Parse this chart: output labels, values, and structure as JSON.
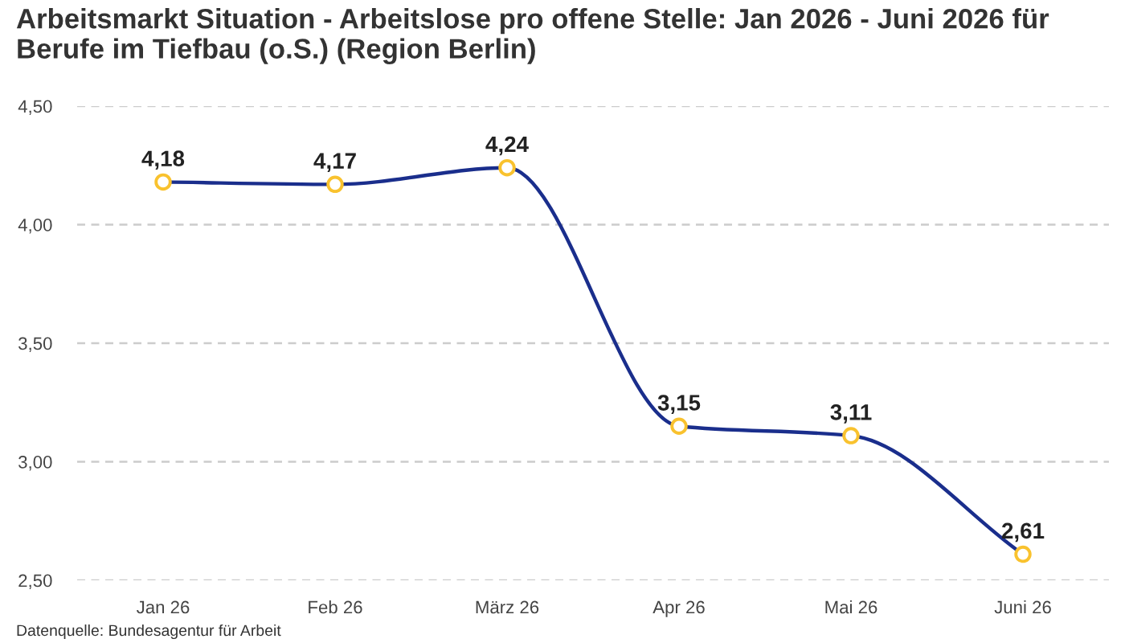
{
  "chart_data": {
    "type": "line",
    "title": "Arbeitsmarkt Situation - Arbeitslose pro offene Stelle: Jan 2026 - Juni 2026 für Berufe im Tiefbau (o.S.) (Region Berlin)",
    "annotations": [
      "Datenquelle: Bundesagentur für Arbeit"
    ],
    "categories": [
      "Jan 26",
      "Feb 26",
      "März 26",
      "Apr 26",
      "Mai 26",
      "Juni 26"
    ],
    "series": [
      {
        "color": "#1a2e8c",
        "values": [
          4.18,
          4.17,
          4.24,
          3.15,
          3.11,
          2.61
        ],
        "value_labels": [
          "4,18",
          "4,17",
          "4,24",
          "3,15",
          "3,11",
          "2,61"
        ]
      }
    ],
    "ylim": [
      2.5,
      4.5
    ],
    "yticks": [
      {
        "value": 2.5,
        "label": "2,50"
      },
      {
        "value": 3.0,
        "label": "3,00"
      },
      {
        "value": 3.5,
        "label": "3,50"
      },
      {
        "value": 4.0,
        "label": "4,00"
      },
      {
        "value": 4.5,
        "label": "4,50"
      }
    ],
    "grid": "y",
    "marker": "circle",
    "line_style": "solid"
  }
}
